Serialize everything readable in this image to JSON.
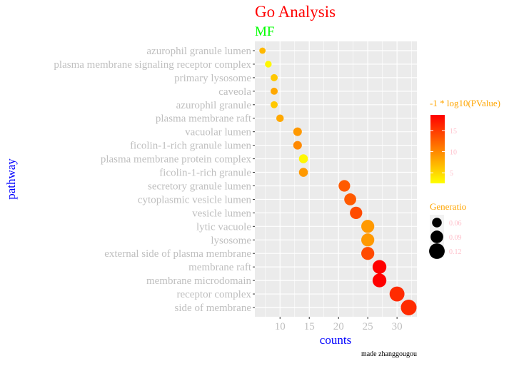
{
  "chart_data": {
    "type": "scatter",
    "title": "Go Analysis",
    "subtitle": "MF",
    "xlabel": "counts",
    "ylabel": "pathway",
    "caption": "made zhanggougou",
    "xlim": [
      5.7,
      33.4
    ],
    "xticks": [
      10,
      15,
      20,
      25,
      30
    ],
    "grid": true,
    "colors": {
      "title": "#ff0000",
      "subtitle": "#00ff00",
      "axis_title": "#0000ff",
      "tick_label": "#bfbfbf",
      "legend_title": "#ffa500",
      "legend_label": "#ffc0cb",
      "panel": "#ebebeb",
      "low": "#ffff00",
      "high": "#ff0000"
    },
    "color_legend": {
      "title": "-1 * log10(PValue)",
      "range": [
        2.5,
        18.7
      ],
      "ticks": [
        5,
        10,
        15
      ]
    },
    "size_legend": {
      "title": "Generatio",
      "ticks": [
        0.06,
        0.09,
        0.12
      ],
      "range": [
        0.026,
        0.121
      ]
    },
    "legend_position": "right",
    "points": [
      {
        "pathway": "azurophil granule lumen",
        "count": 7,
        "logp": 7,
        "ratio": 0.026
      },
      {
        "pathway": "plasma membrane signaling receptor complex",
        "count": 8,
        "logp": 3,
        "ratio": 0.03
      },
      {
        "pathway": "primary lysosome",
        "count": 9,
        "logp": 6,
        "ratio": 0.034
      },
      {
        "pathway": "caveola",
        "count": 9,
        "logp": 8,
        "ratio": 0.034
      },
      {
        "pathway": "azurophil granule",
        "count": 9,
        "logp": 6,
        "ratio": 0.034
      },
      {
        "pathway": "plasma membrane raft",
        "count": 10,
        "logp": 8,
        "ratio": 0.038
      },
      {
        "pathway": "vacuolar lumen",
        "count": 13,
        "logp": 9,
        "ratio": 0.049
      },
      {
        "pathway": "ficolin-1-rich granule lumen",
        "count": 13,
        "logp": 10,
        "ratio": 0.049
      },
      {
        "pathway": "plasma membrane protein complex",
        "count": 14,
        "logp": 3,
        "ratio": 0.053
      },
      {
        "pathway": "ficolin-1-rich granule",
        "count": 14,
        "logp": 9,
        "ratio": 0.053
      },
      {
        "pathway": "secretory granule lumen",
        "count": 21,
        "logp": 13,
        "ratio": 0.079
      },
      {
        "pathway": "cytoplasmic vesicle lumen",
        "count": 22,
        "logp": 13,
        "ratio": 0.083
      },
      {
        "pathway": "vesicle lumen",
        "count": 23,
        "logp": 14,
        "ratio": 0.087
      },
      {
        "pathway": "lytic vacuole",
        "count": 25,
        "logp": 9,
        "ratio": 0.094
      },
      {
        "pathway": "lysosome",
        "count": 25,
        "logp": 9,
        "ratio": 0.094
      },
      {
        "pathway": "external side of plasma membrane",
        "count": 25,
        "logp": 14,
        "ratio": 0.094
      },
      {
        "pathway": "membrane raft",
        "count": 27,
        "logp": 18.7,
        "ratio": 0.102
      },
      {
        "pathway": "membrane microdomain",
        "count": 27,
        "logp": 18.7,
        "ratio": 0.102
      },
      {
        "pathway": "receptor complex",
        "count": 30,
        "logp": 16,
        "ratio": 0.113
      },
      {
        "pathway": "side of membrane",
        "count": 32,
        "logp": 16,
        "ratio": 0.121
      }
    ]
  }
}
